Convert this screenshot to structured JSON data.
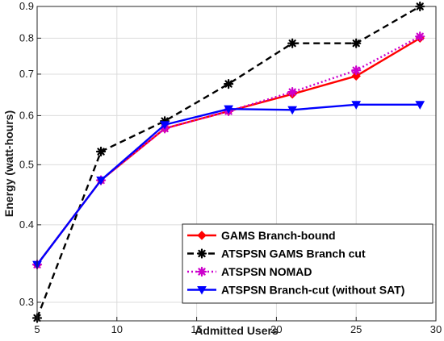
{
  "chart_data": {
    "type": "line",
    "title": "",
    "xlabel": "Admitted Users",
    "ylabel": "Energy (watt-hours)",
    "xlim": [
      5,
      30
    ],
    "ylim": [
      0.28,
      0.9
    ],
    "y_scale": "log",
    "grid": true,
    "legend_position": "bottom-right",
    "x_ticks": [
      5,
      10,
      15,
      20,
      25,
      30
    ],
    "x_tick_labels": [
      "5",
      "10",
      "15",
      "20",
      "25",
      "30"
    ],
    "y_ticks": [
      0.3,
      0.4,
      0.5,
      0.6,
      0.7,
      0.8,
      0.9
    ],
    "y_tick_labels": [
      "0.3",
      "0.4",
      "0.5",
      "0.6",
      "0.7",
      "0.8",
      "0.9"
    ],
    "series": [
      {
        "name": "GAMS Branch-bound",
        "color": "#ff0000",
        "line_style": "solid",
        "marker": "diamond",
        "x": [
          5,
          9,
          13,
          17,
          21,
          25,
          29
        ],
        "y": [
          0.345,
          0.472,
          0.572,
          0.61,
          0.65,
          0.695,
          0.8
        ]
      },
      {
        "name": "ATSPSN GAMS Branch cut",
        "color": "#000000",
        "line_style": "dashed",
        "marker": "star",
        "x": [
          5,
          9,
          13,
          17,
          21,
          25,
          29
        ],
        "y": [
          0.283,
          0.525,
          0.588,
          0.675,
          0.785,
          0.785,
          0.9
        ]
      },
      {
        "name": "ATSPSN NOMAD",
        "color": "#cc00cc",
        "line_style": "dotted",
        "marker": "star",
        "x": [
          5,
          9,
          13,
          17,
          21,
          25,
          29
        ],
        "y": [
          0.345,
          0.472,
          0.572,
          0.61,
          0.655,
          0.71,
          0.805
        ]
      },
      {
        "name": "ATSPSN Branch-cut (without SAT)",
        "color": "#0000ff",
        "line_style": "solid",
        "marker": "triangle-down",
        "x": [
          5,
          9,
          13,
          17,
          21,
          25,
          29
        ],
        "y": [
          0.345,
          0.472,
          0.58,
          0.615,
          0.613,
          0.625,
          0.625
        ]
      }
    ]
  }
}
